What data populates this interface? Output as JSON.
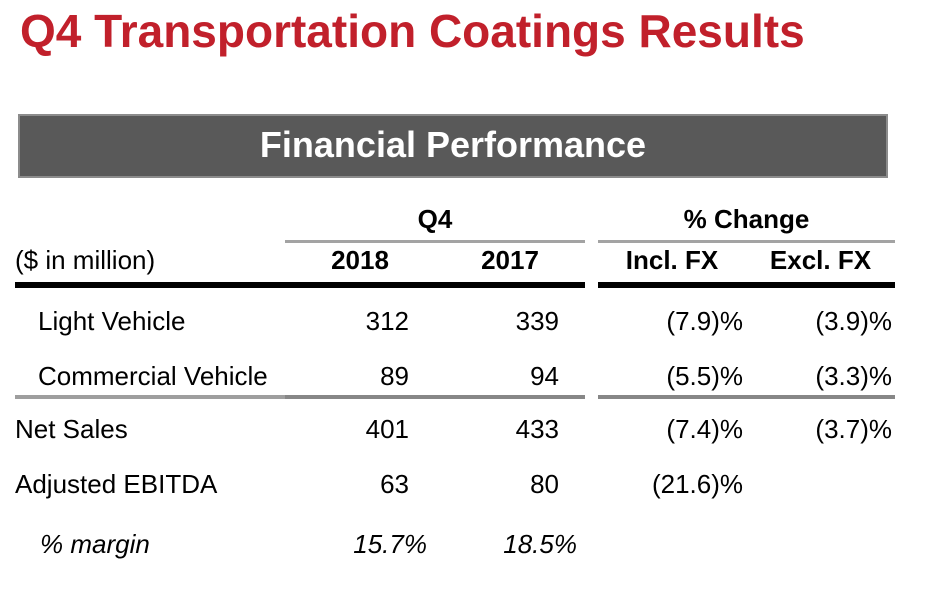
{
  "slide": {
    "title": "Q4 Transportation Coatings Results",
    "section_banner": "Financial Performance"
  },
  "table": {
    "unit_label": "($ in million)",
    "group_headers": {
      "period": "Q4",
      "change": "% Change"
    },
    "column_headers": [
      "2018",
      "2017",
      "Incl. FX",
      "Excl. FX"
    ],
    "rows": [
      {
        "label": "Light Vehicle",
        "values": [
          "312",
          "339",
          "(7.9)%",
          "(3.9)%"
        ]
      },
      {
        "label": "Commercial Vehicle",
        "values": [
          "89",
          "94",
          "(5.5)%",
          "(3.3)%"
        ]
      },
      {
        "label": "Net Sales",
        "values": [
          "401",
          "433",
          "(7.4)%",
          "(3.7)%"
        ]
      },
      {
        "label": "Adjusted EBITDA",
        "values": [
          "63",
          "80",
          "(21.6)%",
          ""
        ]
      },
      {
        "label": "% margin",
        "values": [
          "15.7%",
          "18.5%",
          "",
          ""
        ]
      }
    ]
  },
  "colors": {
    "title_red": "#c1202b",
    "banner_fill": "#595959",
    "banner_border": "#8c8c8c",
    "header_rule_black": "#000000",
    "group_underline_gray": "#a3a3a3",
    "divider_gray": "#878787",
    "text_black": "#000000",
    "banner_text_white": "#ffffff"
  }
}
